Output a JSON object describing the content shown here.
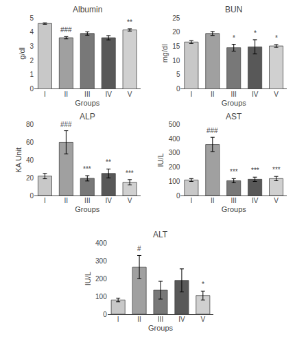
{
  "chart_data": [
    {
      "type": "bar",
      "title": "Albumin",
      "xlabel": "Groups",
      "ylabel": "g/dl",
      "categories": [
        "I",
        "II",
        "III",
        "IV",
        "V"
      ],
      "values": [
        4.6,
        3.6,
        3.9,
        3.6,
        4.15
      ],
      "errors": [
        0.05,
        0.08,
        0.12,
        0.15,
        0.08
      ],
      "annotations": [
        null,
        "###",
        null,
        null,
        "**"
      ],
      "colors": [
        "#c8c8c8",
        "#a0a0a0",
        "#787878",
        "#585858",
        "#d0d0d0"
      ],
      "ylim": [
        0,
        5
      ],
      "yticks": [
        0,
        1,
        2,
        3,
        4,
        5
      ],
      "grid": false
    },
    {
      "type": "bar",
      "title": "BUN",
      "xlabel": "Groups",
      "ylabel": "mg/dl",
      "categories": [
        "I",
        "II",
        "III",
        "IV",
        "V"
      ],
      "values": [
        16.5,
        19.5,
        14.5,
        14.8,
        15.1
      ],
      "errors": [
        0.5,
        0.7,
        1.2,
        2.5,
        0.5
      ],
      "annotations": [
        null,
        null,
        "*",
        "*",
        "*"
      ],
      "colors": [
        "#c8c8c8",
        "#a0a0a0",
        "#787878",
        "#585858",
        "#d0d0d0"
      ],
      "ylim": [
        0,
        25
      ],
      "yticks": [
        0,
        5,
        10,
        15,
        20,
        25
      ],
      "grid": false
    },
    {
      "type": "bar",
      "title": "ALP",
      "xlabel": "Groups",
      "ylabel": "KA Unit",
      "categories": [
        "I",
        "II",
        "III",
        "IV",
        "V"
      ],
      "values": [
        22,
        60,
        19.5,
        25,
        15
      ],
      "errors": [
        3,
        13,
        3,
        5,
        3
      ],
      "annotations": [
        null,
        "###",
        "***",
        "**",
        "***"
      ],
      "colors": [
        "#c8c8c8",
        "#a0a0a0",
        "#787878",
        "#585858",
        "#d0d0d0"
      ],
      "ylim": [
        0,
        80
      ],
      "yticks": [
        0,
        20,
        40,
        60,
        80
      ],
      "grid": false
    },
    {
      "type": "bar",
      "title": "AST",
      "xlabel": "Groups",
      "ylabel": "IU/L",
      "categories": [
        "I",
        "II",
        "III",
        "IV",
        "V"
      ],
      "values": [
        110,
        360,
        105,
        115,
        120
      ],
      "errors": [
        10,
        50,
        15,
        15,
        15
      ],
      "annotations": [
        null,
        "###",
        "***",
        "***",
        "***"
      ],
      "colors": [
        "#c8c8c8",
        "#a0a0a0",
        "#787878",
        "#585858",
        "#d0d0d0"
      ],
      "ylim": [
        0,
        500
      ],
      "yticks": [
        0,
        100,
        200,
        300,
        400,
        500
      ],
      "grid": false
    },
    {
      "type": "bar",
      "title": "ALT",
      "xlabel": "Groups",
      "ylabel": "IU/L",
      "categories": [
        "I",
        "II",
        "III",
        "IV",
        "V"
      ],
      "values": [
        80,
        265,
        135,
        190,
        105
      ],
      "errors": [
        10,
        65,
        50,
        65,
        25
      ],
      "annotations": [
        null,
        "#",
        null,
        null,
        "*"
      ],
      "colors": [
        "#c8c8c8",
        "#a0a0a0",
        "#787878",
        "#585858",
        "#d0d0d0"
      ],
      "ylim": [
        0,
        400
      ],
      "yticks": [
        0,
        100,
        200,
        300,
        400
      ],
      "grid": false
    }
  ]
}
